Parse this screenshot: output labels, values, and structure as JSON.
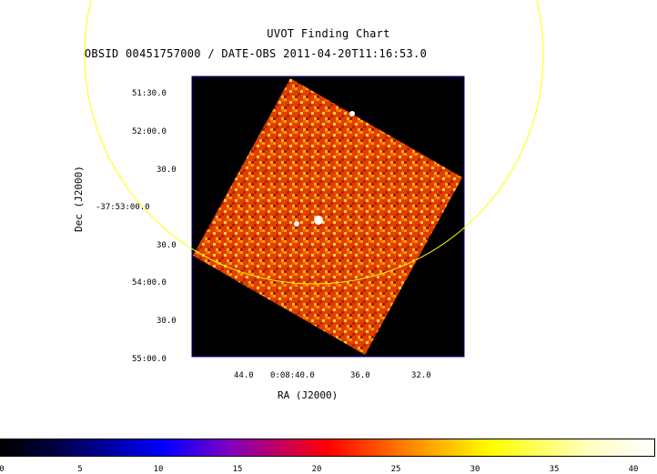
{
  "title_line1": "UVOT Finding Chart",
  "title_line2": "OBSID 00451757000 / DATE-OBS 2011-04-20T11:16:53.0",
  "xlabel": "RA (J2000)",
  "ylabel": "Dec (J2000)",
  "x_ticks": [
    "44.0",
    "0:08:40.0",
    "36.0",
    "32.0"
  ],
  "y_ticks": [
    "51:30.0",
    "52:00.0",
    "30.0",
    "-37:53:00.0",
    "30.0",
    "54:00.0",
    "30.0",
    "55:00.0"
  ],
  "colorbar_ticks": [
    "0",
    "5",
    "10",
    "15",
    "20",
    "25",
    "30",
    "35",
    "40"
  ],
  "colors": {
    "circle": "#ffff00",
    "frame": "#0000aa"
  }
}
